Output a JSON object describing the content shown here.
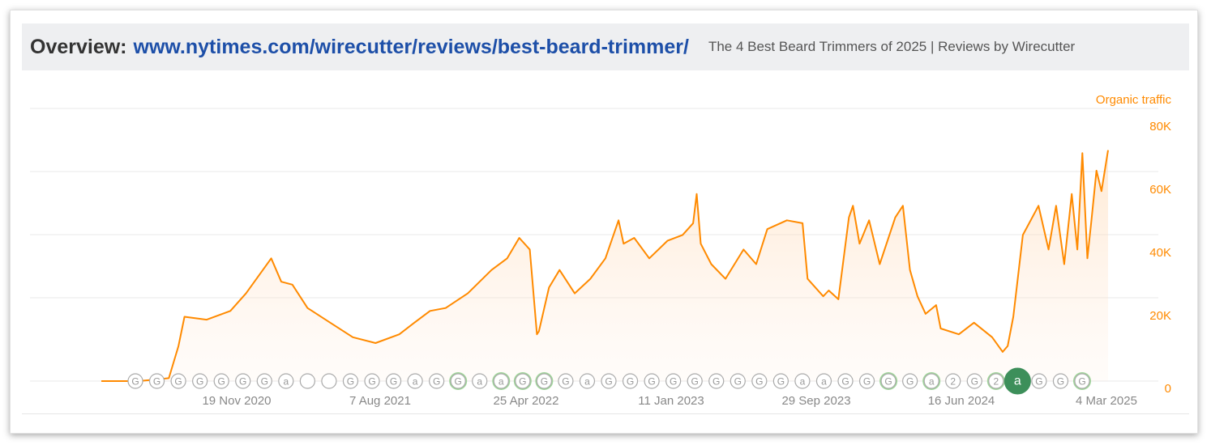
{
  "header": {
    "prefix": "Overview:",
    "url": "www.nytimes.com/wirecutter/reviews/best-beard-trimmer/",
    "page_title": "The 4 Best Beard Trimmers of 2025 | Reviews by Wirecutter"
  },
  "colors": {
    "series": "#ff8a00",
    "grid": "#e8e8e8",
    "marker_text": "#999999",
    "marker_green": "#8fcf8a",
    "marker_green_dark": "#3d8f5a"
  },
  "chart_data": {
    "type": "area",
    "series_label": "Organic traffic",
    "x_ticks": [
      "19 Nov 2020",
      "7 Aug 2021",
      "25 Apr 2022",
      "11 Jan 2023",
      "29 Sep 2023",
      "16 Jun 2024",
      "4 Mar 2025"
    ],
    "x_range": [
      "2019-10-19",
      "2025-04-07"
    ],
    "y_ticks": [
      "0",
      "20K",
      "40K",
      "60K",
      "80K"
    ],
    "ylim": [
      0,
      80000
    ],
    "grid": true,
    "x": [
      "2019-10-19",
      "2020-01-01",
      "2020-02-01",
      "2020-03-01",
      "2020-03-20",
      "2020-04-01",
      "2020-05-15",
      "2020-07-01",
      "2020-08-01",
      "2020-09-20",
      "2020-10-10",
      "2020-11-01",
      "2020-12-01",
      "2021-01-15",
      "2021-03-01",
      "2021-04-15",
      "2021-06-01",
      "2021-07-01",
      "2021-08-01",
      "2021-09-01",
      "2021-10-15",
      "2021-12-01",
      "2022-01-01",
      "2022-01-25",
      "2022-02-15",
      "2022-03-01",
      "2022-03-05",
      "2022-03-25",
      "2022-04-15",
      "2022-05-15",
      "2022-06-15",
      "2022-07-15",
      "2022-08-10",
      "2022-08-20",
      "2022-09-10",
      "2022-10-10",
      "2022-11-15",
      "2022-12-15",
      "2023-01-05",
      "2023-01-12",
      "2023-01-20",
      "2023-02-10",
      "2023-03-10",
      "2023-04-15",
      "2023-05-10",
      "2023-06-01",
      "2023-07-10",
      "2023-08-10",
      "2023-08-20",
      "2023-09-20",
      "2023-10-01",
      "2023-10-20",
      "2023-11-10",
      "2023-11-18",
      "2023-12-01",
      "2023-12-20",
      "2024-01-10",
      "2024-02-10",
      "2024-02-25",
      "2024-03-10",
      "2024-03-25",
      "2024-04-10",
      "2024-05-01",
      "2024-05-10",
      "2024-06-15",
      "2024-07-15",
      "2024-08-20",
      "2024-09-10",
      "2024-09-20",
      "2024-10-01",
      "2024-10-20",
      "2024-11-20",
      "2024-12-10",
      "2024-12-25",
      "2025-01-10",
      "2025-01-25",
      "2025-02-05",
      "2025-02-15",
      "2025-02-25",
      "2025-03-05",
      "2025-03-15",
      "2025-03-25",
      "2025-04-07"
    ],
    "y": [
      0,
      0,
      500,
      1000,
      12000,
      22000,
      21000,
      24000,
      30000,
      42000,
      34000,
      33000,
      25000,
      20000,
      15000,
      13000,
      16000,
      20000,
      24000,
      25000,
      30000,
      38000,
      42000,
      49000,
      45000,
      16000,
      17000,
      32000,
      38000,
      30000,
      35000,
      42000,
      55000,
      47000,
      49000,
      42000,
      48000,
      50000,
      54000,
      64000,
      47000,
      40000,
      35000,
      45000,
      40000,
      52000,
      55000,
      54000,
      35000,
      29000,
      31000,
      28000,
      56000,
      60000,
      47000,
      55000,
      40000,
      56000,
      60000,
      38000,
      29000,
      23000,
      26000,
      18000,
      16000,
      20000,
      15000,
      10000,
      12000,
      22000,
      50000,
      60000,
      45000,
      60000,
      40000,
      64000,
      45000,
      78000,
      42000,
      55000,
      72000,
      65000,
      79000
    ],
    "event_markers": [
      {
        "date": "2020-01-15",
        "label": "G"
      },
      {
        "date": "2020-04-20",
        "label": "G"
      },
      {
        "date": "2020-06-01",
        "label": "G"
      },
      {
        "date": "2020-08-10",
        "label": "G"
      },
      {
        "date": "2020-09-05",
        "label": "G"
      },
      {
        "date": "2020-12-05",
        "label": "G"
      },
      {
        "date": "2021-03-05",
        "label": "G"
      },
      {
        "date": "2021-04-20",
        "label": "a"
      },
      {
        "date": "2021-06-01",
        "label": ""
      },
      {
        "date": "2021-06-20",
        "label": ""
      },
      {
        "date": "2021-07-10",
        "label": "G"
      },
      {
        "date": "2021-08-05",
        "label": "G"
      },
      {
        "date": "2021-09-01",
        "label": "G"
      },
      {
        "date": "2021-10-05",
        "label": "a"
      },
      {
        "date": "2021-12-01",
        "label": "G"
      },
      {
        "date": "2022-01-01",
        "label": "G",
        "green": true
      },
      {
        "date": "2022-03-01",
        "label": "a"
      },
      {
        "date": "2022-04-15",
        "label": "a",
        "green": true
      },
      {
        "date": "2022-05-15",
        "label": "G",
        "green": true
      },
      {
        "date": "2022-07-15",
        "label": "G",
        "green": true
      },
      {
        "date": "2022-08-20",
        "label": "G"
      },
      {
        "date": "2022-09-10",
        "label": "a"
      },
      {
        "date": "2022-10-01",
        "label": "G"
      },
      {
        "date": "2022-11-10",
        "label": "G"
      },
      {
        "date": "2022-12-05",
        "label": "G"
      },
      {
        "date": "2023-01-05",
        "label": "G"
      },
      {
        "date": "2023-02-01",
        "label": "G"
      },
      {
        "date": "2023-03-15",
        "label": "G"
      },
      {
        "date": "2023-06-20",
        "label": "G"
      },
      {
        "date": "2023-07-15",
        "label": "G"
      },
      {
        "date": "2023-08-10",
        "label": "G"
      },
      {
        "date": "2023-11-10",
        "label": "a"
      },
      {
        "date": "2024-01-20",
        "label": "a"
      },
      {
        "date": "2024-02-20",
        "label": "G"
      },
      {
        "date": "2024-03-15",
        "label": "G"
      },
      {
        "date": "2024-04-10",
        "label": "G",
        "green": true
      },
      {
        "date": "2024-05-15",
        "label": "G"
      },
      {
        "date": "2024-08-15",
        "label": "a",
        "green": true
      },
      {
        "date": "2024-10-20",
        "label": "2"
      },
      {
        "date": "2024-12-15",
        "label": "G"
      },
      {
        "date": "2025-02-20",
        "label": "2",
        "green": true
      },
      {
        "date": "2025-04-05",
        "label": "a",
        "green": true,
        "big": true
      },
      {
        "date": "2025-05-20",
        "label": "G"
      },
      {
        "date": "2025-07-01",
        "label": "G"
      },
      {
        "date": "2025-08-10",
        "label": "G",
        "green": true
      }
    ]
  }
}
